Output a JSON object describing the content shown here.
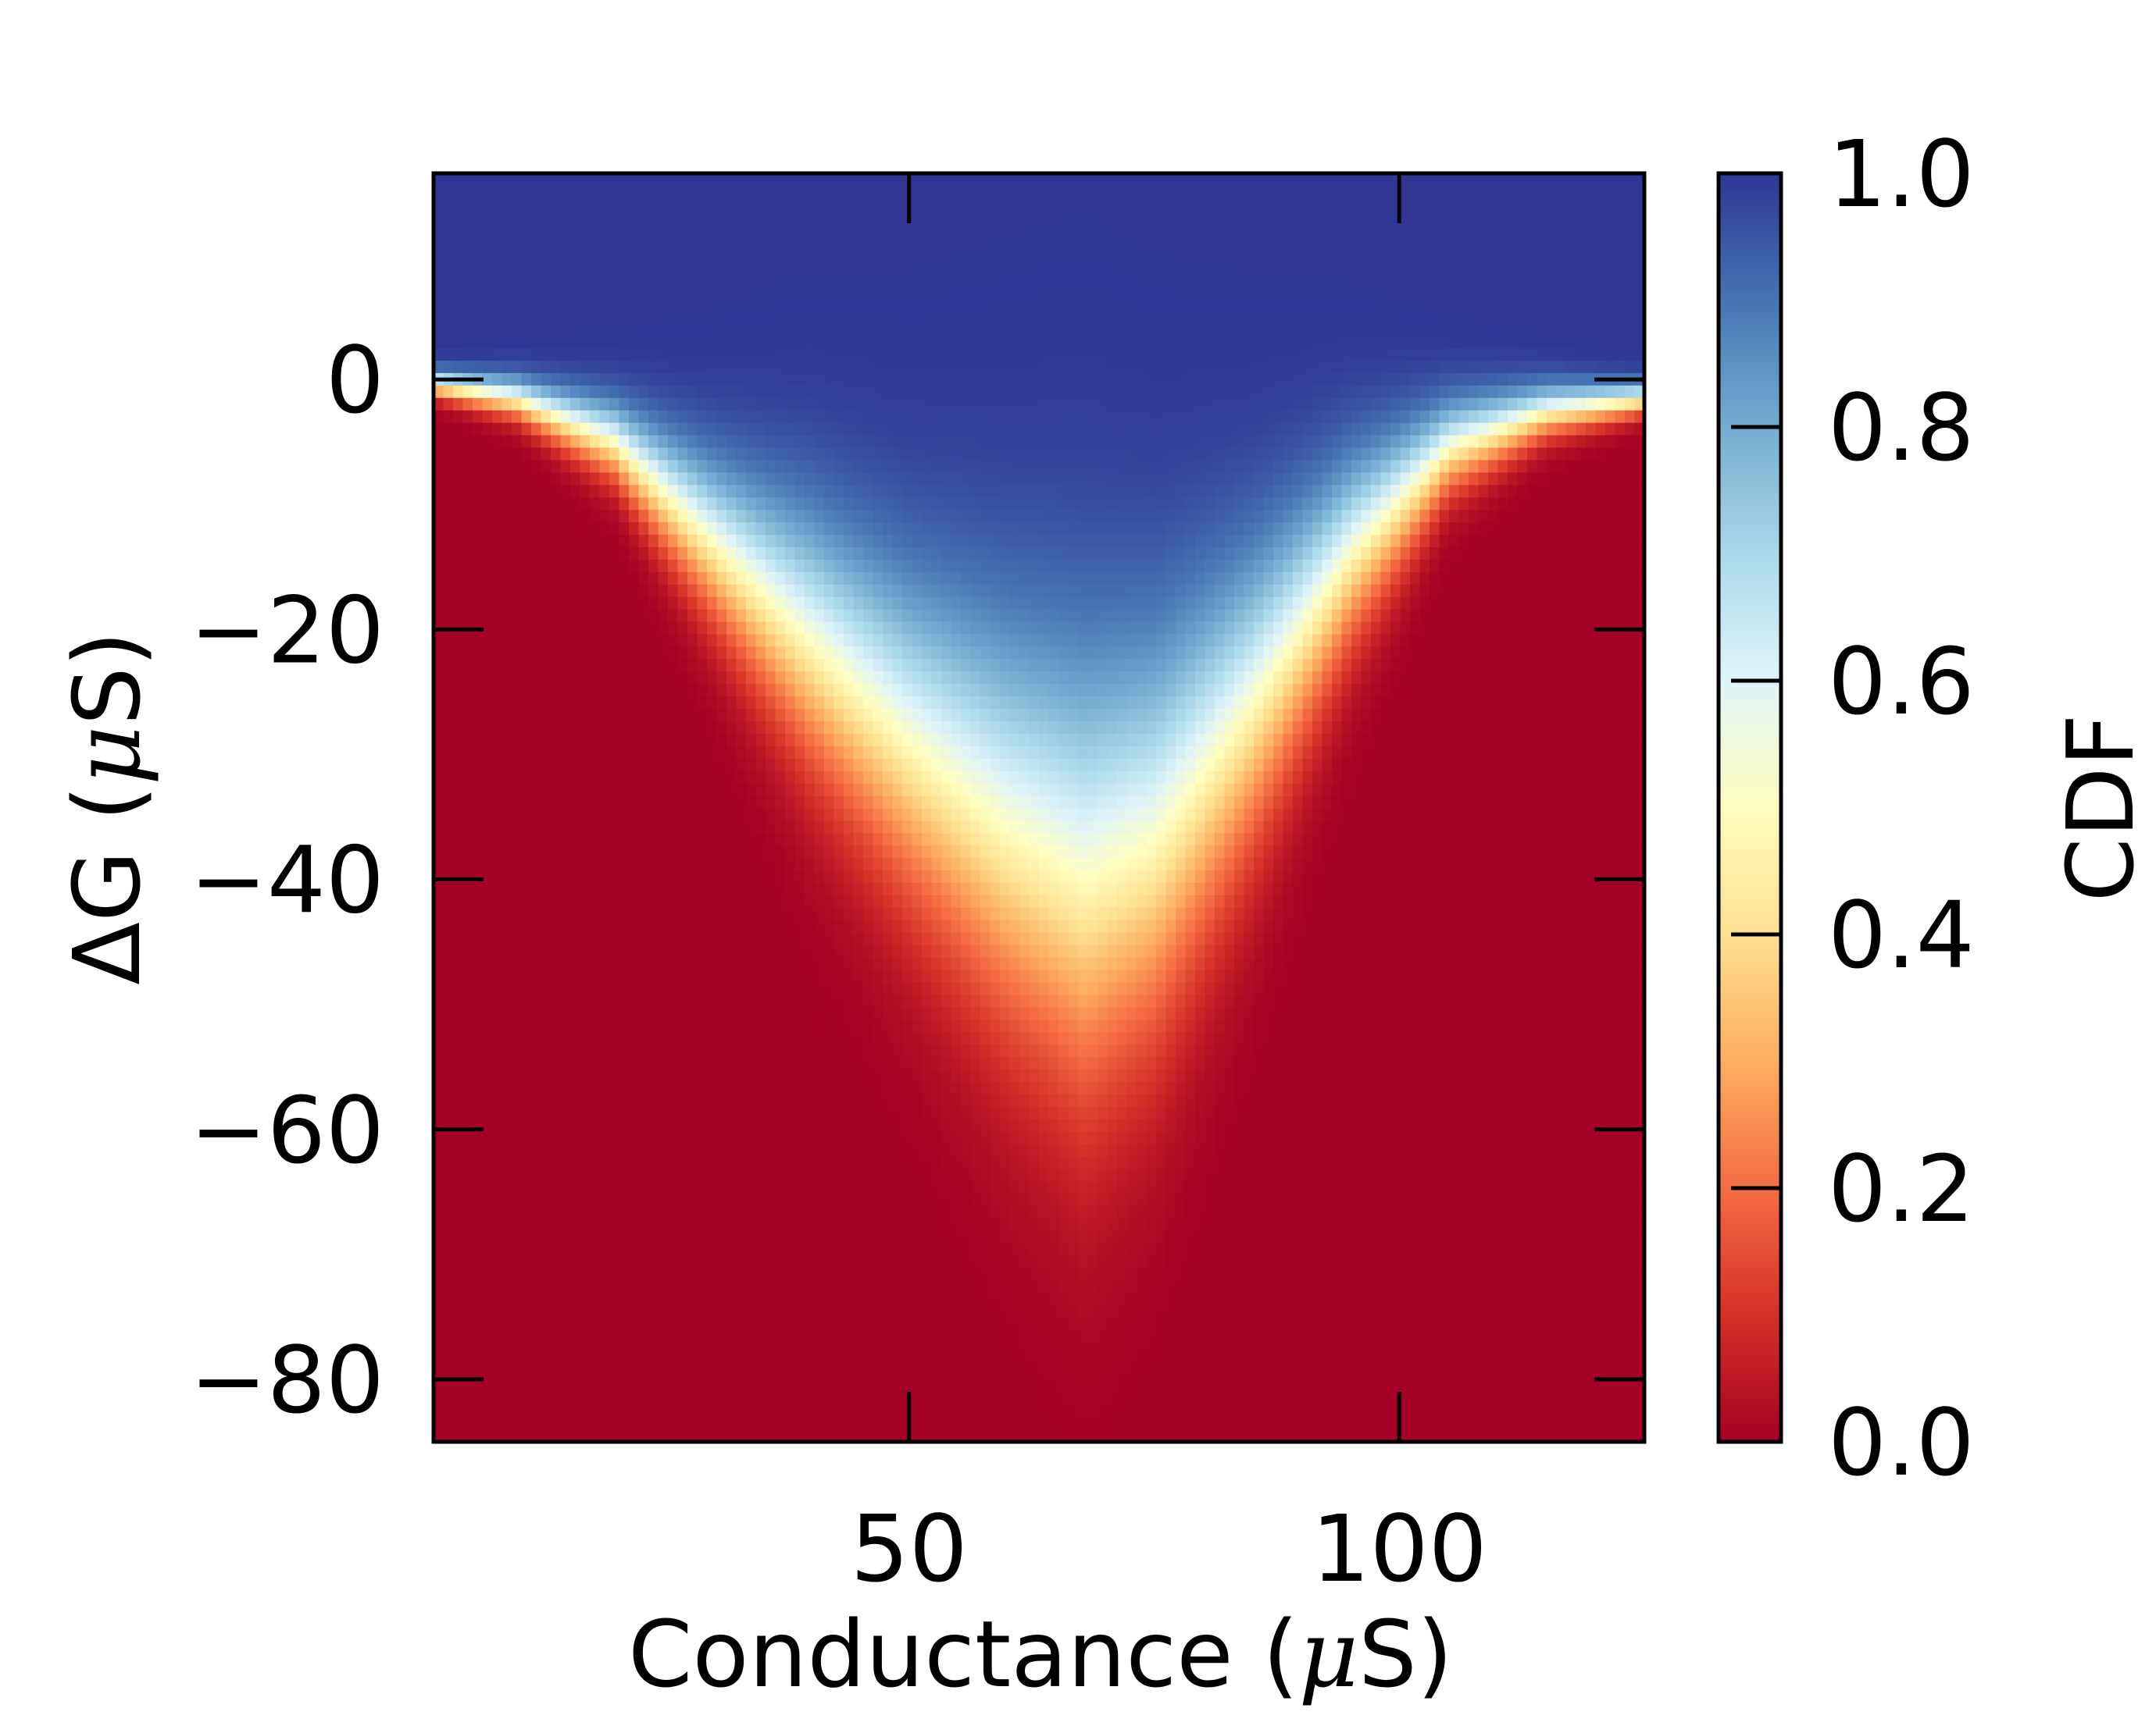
{
  "chart_data": {
    "type": "heatmap",
    "xlabel_prefix": "Conductance (",
    "ylabel_prefix": "ΔG (",
    "unit_mu": "μ",
    "unit_suffix": "S)",
    "colorbar_label": "CDF",
    "xlim": [
      1.5,
      125
    ],
    "ylim": [
      -85,
      16.5
    ],
    "x_ticks": [
      {
        "value": 50,
        "label": "50"
      },
      {
        "value": 100,
        "label": "100"
      }
    ],
    "y_ticks": [
      {
        "value": 0,
        "label": "0"
      },
      {
        "value": -20,
        "label": "−20"
      },
      {
        "value": -40,
        "label": "−40"
      },
      {
        "value": -60,
        "label": "−60"
      },
      {
        "value": -80,
        "label": "−80"
      }
    ],
    "colorbar_range": [
      0,
      1
    ],
    "colorbar_ticks": [
      {
        "value": 0.0,
        "label": "0.0"
      },
      {
        "value": 0.2,
        "label": "0.2"
      },
      {
        "value": 0.4,
        "label": "0.4"
      },
      {
        "value": 0.6,
        "label": "0.6"
      },
      {
        "value": 0.8,
        "label": "0.8"
      },
      {
        "value": 1.0,
        "label": "1.0"
      }
    ],
    "colormap": "RdYlBu",
    "colormap_stops": [
      "#a50026",
      "#d73027",
      "#f46d43",
      "#fdae61",
      "#fee090",
      "#ffffbf",
      "#e0f3f8",
      "#abd9e9",
      "#74add1",
      "#4575b4",
      "#313695"
    ],
    "median_ridge": {
      "x": [
        1.5,
        10,
        20,
        30,
        40,
        50,
        60,
        68,
        75,
        85,
        95,
        105,
        115,
        125
      ],
      "y": [
        -0.3,
        -1.5,
        -5,
        -13,
        -21,
        -29,
        -36,
        -40,
        -37,
        -26,
        -14,
        -5.5,
        -2.5,
        -1.5
      ]
    },
    "spread": {
      "x": [
        1.5,
        10,
        20,
        30,
        40,
        50,
        60,
        68,
        75,
        85,
        95,
        105,
        115,
        125
      ],
      "sigma": [
        1.0,
        1.6,
        3.0,
        6.0,
        9.5,
        12.0,
        15.0,
        17.0,
        15.0,
        11.0,
        7.0,
        3.5,
        2.0,
        1.2
      ]
    }
  }
}
